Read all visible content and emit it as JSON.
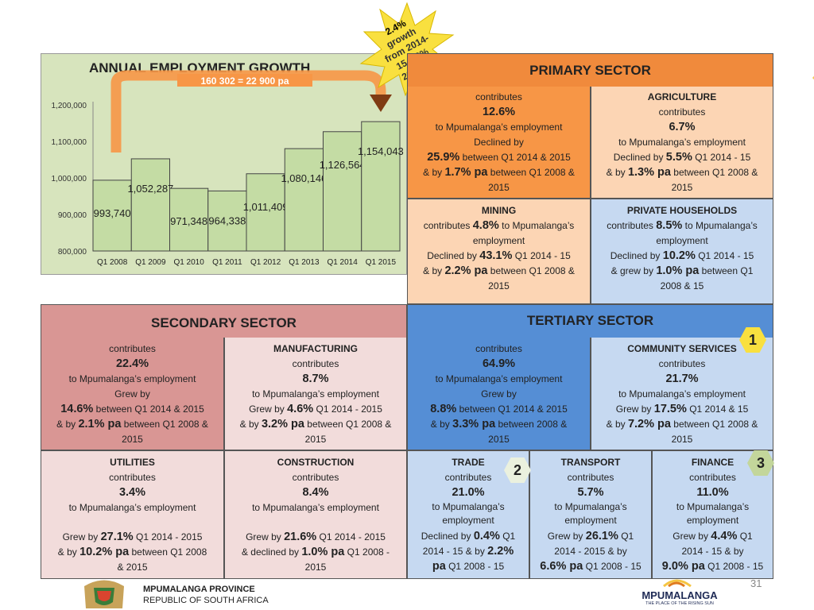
{
  "burst": {
    "l1": "2.4%",
    "l2": "growth",
    "l3": "from 2014-",
    "l4": "15 2.2%",
    "l5": "2008-15"
  },
  "chart_data": {
    "type": "bar",
    "title": "ANNUAL EMPLOYMENT GROWTH",
    "annotation": "160 302 = 22 900 pa",
    "categories": [
      "Q1 2008",
      "Q1 2009",
      "Q1 2010",
      "Q1 2011",
      "Q1 2012",
      "Q1 2013",
      "Q1 2014",
      "Q1 2015"
    ],
    "values": [
      993740,
      1052287,
      971348,
      964338,
      1011409,
      1080146,
      1126564,
      1154043
    ],
    "value_labels": [
      "993,740",
      "1,052,287",
      "971,348",
      "964,338",
      "1,011,409",
      "1,080,146",
      "1,126,564",
      "1,154,043"
    ],
    "ylim": [
      800000,
      1200000
    ],
    "yticks": [
      "1,200,000",
      "1,100,000",
      "1,000,000",
      "900,000",
      "800,000"
    ],
    "bar_color": "#c4dca4",
    "background": "#d7e4bd"
  },
  "primary": {
    "title": "PRIMARY SECTOR",
    "main": {
      "a": "contributes",
      "b": "12.6%",
      "c": "to Mpumalanga’s employment",
      "d": "Declined by",
      "e1": "25.9%",
      "e2": " between Q1 2014 & 2015",
      "f1": "& by ",
      "f2": "1.7% pa",
      "f3": " between Q1 2008 &",
      "g": "2015"
    },
    "agriculture": {
      "title": "AGRICULTURE",
      "a": "contributes",
      "b": "6.7%",
      "c": "to Mpumalanga’s employment",
      "d1": "Declined by ",
      "d2": "5.5%",
      "d3": " Q1 2014 - 15",
      "e1": "& by ",
      "e2": "1.3% pa",
      "e3": " between Q1 2008 &",
      "f": "2015"
    },
    "mining": {
      "title": "MINING",
      "a1": "contributes ",
      "a2": "4.8%",
      "a3": " to Mpumalanga’s",
      "b": "employment",
      "c1": "Declined by ",
      "c2": "43.1%",
      "c3": " Q1 2014 - 15",
      "d1": "& by ",
      "d2": "2.2% pa",
      "d3": " between Q1 2008 &",
      "e": "2015"
    },
    "households": {
      "title": "PRIVATE HOUSEHOLDS",
      "a1": "contributes ",
      "a2": "8.5%",
      "a3": " to Mpumalanga’s",
      "b": "employment",
      "c1": "Declined by ",
      "c2": "10.2%",
      "c3": " Q1 2014 - 15",
      "d1": "& grew by ",
      "d2": "1.0% pa",
      "d3": "  between Q1",
      "e": "2008 & 15"
    }
  },
  "secondary": {
    "title": "SECONDARY SECTOR",
    "main": {
      "a": "contributes",
      "b": "22.4%",
      "c": "to Mpumalanga’s employment",
      "d": "Grew by",
      "e1": "14.6%",
      "e2": " between Q1 2014 & 2015",
      "f1": "& by ",
      "f2": "2.1% pa",
      "f3": " between Q1 2008 &",
      "g": "2015"
    },
    "manufacturing": {
      "title": "MANUFACTURING",
      "a": "contributes",
      "b": "8.7%",
      "c": "to Mpumalanga’s employment",
      "d1": "Grew by ",
      "d2": "4.6%",
      "d3": " Q1 2014 - 2015",
      "e1": "& by ",
      "e2": "3.2% pa",
      "e3": " between Q1 2008 &",
      "f": "2015"
    },
    "utilities": {
      "title": "UTILITIES",
      "a": "contributes",
      "b": "3.4%",
      "c": "to Mpumalanga’s employment",
      "d1": "Grew by ",
      "d2": "27.1%",
      "d3": " Q1 2014 - 2015",
      "e1": "& by ",
      "e2": "10.2% pa",
      "e3": " between Q1 2008",
      "f": "& 2015"
    },
    "construction": {
      "title": "CONSTRUCTION",
      "a": "contributes",
      "b": "8.4%",
      "c": "to Mpumalanga’s employment",
      "d1": "Grew by ",
      "d2": "21.6%",
      "d3": " Q1 2014 - 2015",
      "e1": "& declined by ",
      "e2": "1.0% pa",
      "e3": " Q1 2008 -",
      "f": "2015"
    }
  },
  "tertiary": {
    "title": "TERTIARY SECTOR",
    "main": {
      "a": "contributes",
      "b": "64.9%",
      "c": "to Mpumalanga’s employment",
      "d": "Grew by",
      "e1": "8.8%",
      "e2": " between Q1 2014 & 2015",
      "f1": "& by ",
      "f2": "3.3% pa",
      "f3": " between 2008 &",
      "g": "2015"
    },
    "community": {
      "title": "COMMUNITY SERVICES",
      "a": "contributes",
      "b": "21.7%",
      "c": "to Mpumalanga’s employment",
      "d1": "Grew by ",
      "d2": "17.5%",
      "d3": " Q1 2014 & 15",
      "e1": "& by ",
      "e2": "7.2% pa",
      "e3": " between Q1 2008 &",
      "f": "2015"
    },
    "trade": {
      "title": "TRADE",
      "a": "contributes",
      "b": "21.0%",
      "c": "to Mpumalanga’s",
      "d": "employment",
      "e1": "Declined by  ",
      "e2": "0.4%",
      "e3": "  Q1",
      "f1": "2014 - 15 & by ",
      "f2": "2.2%",
      "g1": "pa",
      "g2": " Q1 2008 - 15"
    },
    "transport": {
      "title": "TRANSPORT",
      "a": "contributes",
      "b": "5.7%",
      "c": "to Mpumalanga’s",
      "d": "employment",
      "e1": "Grew by ",
      "e2": "26.1%",
      "e3": " Q1",
      "f": "2014 - 2015 & by",
      "g1": "6.6% pa",
      "g2": " Q1 2008 - 15"
    },
    "finance": {
      "title": "FINANCE",
      "a": "contributes",
      "b": "11.0%",
      "c": "to Mpumalanga’s",
      "d": "employment",
      "e1": "Grew by ",
      "e2": "4.4%",
      "e3": " Q1",
      "f": "2014 - 15 & by",
      "g1": "9.0% pa",
      "g2": " Q1 2008 - 15"
    }
  },
  "badges": {
    "b1": "1",
    "b2": "2",
    "b3": "3"
  },
  "footer": {
    "province": "MPUMALANGA PROVINCE",
    "country": "REPUBLIC OF SOUTH AFRICA",
    "logo_name": "MPUMALANGA",
    "logo_tagline": "THE PLACE OF THE RISING SUN",
    "page": "31"
  },
  "colors": {
    "primary_header": "#f08a3c",
    "primary_main": "#f79646",
    "primary_light": "#fcd5b4",
    "secondary_header": "#d99694",
    "secondary_light": "#f2dcdb",
    "tertiary_header": "#558ed5",
    "tertiary_light": "#c6d9f1"
  }
}
